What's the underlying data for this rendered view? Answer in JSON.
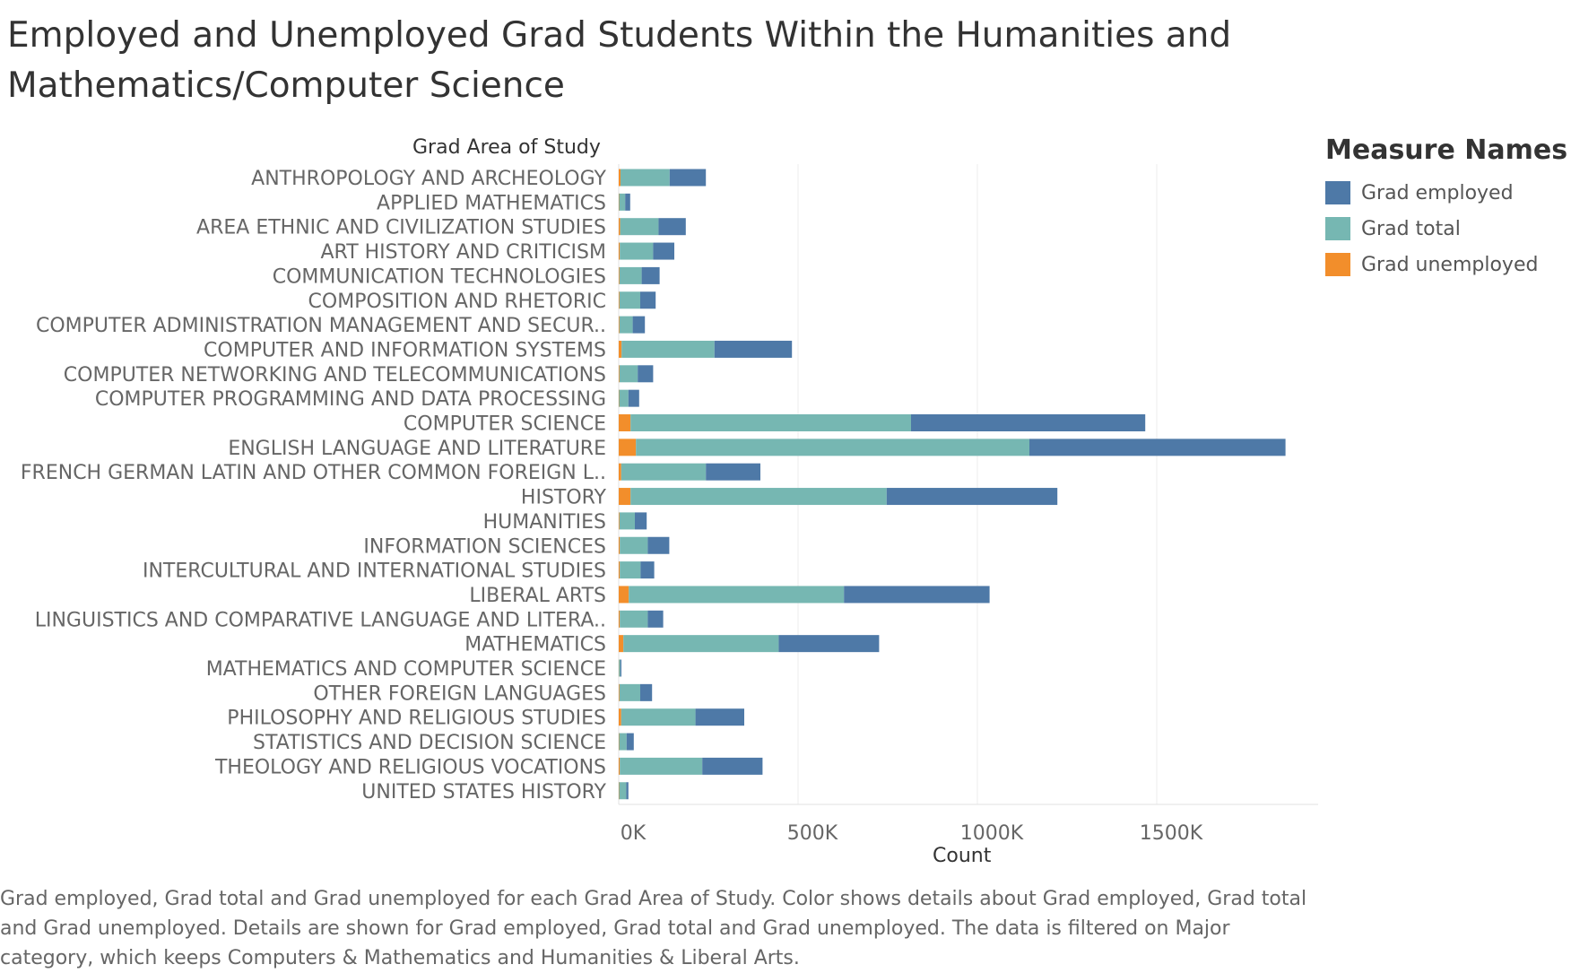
{
  "chart_data": {
    "type": "bar",
    "orientation": "horizontal",
    "stacked": true,
    "title_lines": [
      "Employed and Unemployed Grad Students Within the Humanities and",
      "Mathematics/Computer Science"
    ],
    "ylabel": "Grad Area of Study",
    "xlabel": "Count",
    "xlim": [
      0,
      1950000
    ],
    "x_ticks": [
      0,
      500000,
      1000000,
      1500000
    ],
    "x_tick_labels": [
      "0K",
      "500K",
      "1000K",
      "1500K"
    ],
    "grid": "vertical gridlines",
    "legend_position": "right",
    "legend": {
      "title": "Measure Names",
      "items": [
        {
          "label": "Grad employed",
          "color": "#4e79a7"
        },
        {
          "label": "Grad total",
          "color": "#76b7b2"
        },
        {
          "label": "Grad unemployed",
          "color": "#f28e2b"
        }
      ]
    },
    "categories": [
      "ANTHROPOLOGY AND ARCHEOLOGY",
      "APPLIED MATHEMATICS",
      "AREA ETHNIC AND CIVILIZATION STUDIES",
      "ART HISTORY AND CRITICISM",
      "COMMUNICATION TECHNOLOGIES",
      "COMPOSITION AND RHETORIC",
      "COMPUTER ADMINISTRATION MANAGEMENT AND SECUR..",
      "COMPUTER AND INFORMATION SYSTEMS",
      "COMPUTER NETWORKING AND TELECOMMUNICATIONS",
      "COMPUTER PROGRAMMING AND DATA PROCESSING",
      "COMPUTER SCIENCE",
      "ENGLISH LANGUAGE AND LITERATURE",
      "FRENCH GERMAN LATIN AND OTHER COMMON FOREIGN L..",
      "HISTORY",
      "HUMANITIES",
      "INFORMATION SCIENCES",
      "INTERCULTURAL AND INTERNATIONAL STUDIES",
      "LIBERAL ARTS",
      "LINGUISTICS AND COMPARATIVE LANGUAGE AND LITERA..",
      "MATHEMATICS",
      "MATHEMATICS AND COMPUTER SCIENCE",
      "OTHER FOREIGN LANGUAGES",
      "PHILOSOPHY AND RELIGIOUS STUDIES",
      "STATISTICS AND DECISION SCIENCE",
      "THEOLOGY AND RELIGIOUS VOCATIONS",
      "UNITED STATES HISTORY"
    ],
    "series": [
      {
        "name": "Grad unemployed",
        "color": "#f28e2b",
        "values": [
          5000,
          1000,
          4000,
          3000,
          2000,
          2000,
          2000,
          8000,
          2000,
          1000,
          33000,
          48000,
          7000,
          33000,
          2000,
          3000,
          3000,
          28000,
          3000,
          13000,
          500,
          2000,
          7000,
          1000,
          3000,
          1000
        ]
      },
      {
        "name": "Grad total",
        "color": "#76b7b2",
        "values": [
          137000,
          17000,
          107000,
          93000,
          62000,
          58000,
          37000,
          259000,
          51000,
          26000,
          782000,
          1097000,
          236000,
          714000,
          43000,
          78000,
          58000,
          600000,
          78000,
          433000,
          4000,
          58000,
          207000,
          21000,
          230000,
          20000
        ]
      },
      {
        "name": "Grad employed",
        "color": "#4e79a7",
        "values": [
          101000,
          14000,
          76000,
          59000,
          50000,
          43000,
          34000,
          216000,
          43000,
          30000,
          653000,
          714000,
          152000,
          476000,
          33000,
          60000,
          38000,
          406000,
          43000,
          280000,
          3000,
          33000,
          136000,
          20000,
          168000,
          6000
        ]
      }
    ],
    "footnote": "Grad employed, Grad total and Grad unemployed for each Grad Area of Study.  Color shows details about Grad employed, Grad total and Grad unemployed.  Details are shown for Grad employed, Grad total and Grad unemployed. The data is filtered on Major category, which keeps Computers & Mathematics and Humanities & Liberal Arts."
  }
}
